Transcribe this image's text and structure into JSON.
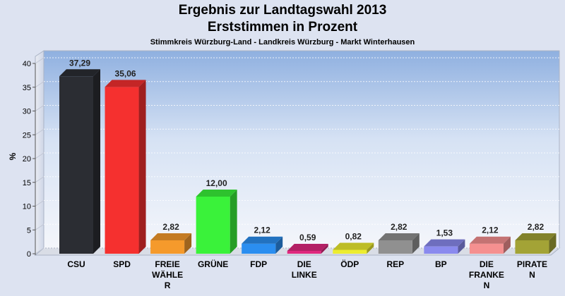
{
  "header": {
    "title_line1": "Ergebnis zur Landtagswahl 2013",
    "title_line2": "Erststimmen in Prozent",
    "subtitle": "Stimmkreis Würzburg-Land - Landkreis Würzburg - Markt Winterhausen"
  },
  "chart_data": {
    "type": "bar",
    "title": "Ergebnis zur Landtagswahl 2013",
    "subtitle": "Erststimmen in Prozent",
    "xlabel": "",
    "ylabel": "%",
    "ylim": [
      0,
      40
    ],
    "yticks": [
      0,
      5,
      10,
      15,
      20,
      25,
      30,
      35,
      40
    ],
    "grid": true,
    "legend": "none",
    "categories": [
      "CSU",
      "SPD",
      "FREIE WÄHLER",
      "GRÜNE",
      "FDP",
      "DIE LINKE",
      "ÖDP",
      "REP",
      "BP",
      "DIE FRANKEN",
      "PIRATEN"
    ],
    "category_label_lines": [
      [
        "CSU"
      ],
      [
        "SPD"
      ],
      [
        "FREIE",
        "WÄHLE",
        "R"
      ],
      [
        "GRÜNE"
      ],
      [
        "FDP"
      ],
      [
        "DIE",
        "LINKE"
      ],
      [
        "ÖDP"
      ],
      [
        "REP"
      ],
      [
        "BP"
      ],
      [
        "DIE",
        "FRANKE",
        "N"
      ],
      [
        "PIRATE",
        "N"
      ]
    ],
    "values": [
      37.29,
      35.06,
      2.82,
      12.0,
      2.12,
      0.59,
      0.82,
      2.82,
      1.53,
      2.12,
      2.82
    ],
    "value_labels": [
      "37,29",
      "35,06",
      "2,82",
      "12,00",
      "2,12",
      "0,59",
      "0,82",
      "2,82",
      "1,53",
      "2,12",
      "2,82"
    ],
    "colors": [
      "#2b2d33",
      "#f5302f",
      "#f59a2c",
      "#3af23a",
      "#2b8ef0",
      "#e0287e",
      "#ecec30",
      "#909090",
      "#8a8aee",
      "#f59090",
      "#a3a336"
    ]
  }
}
